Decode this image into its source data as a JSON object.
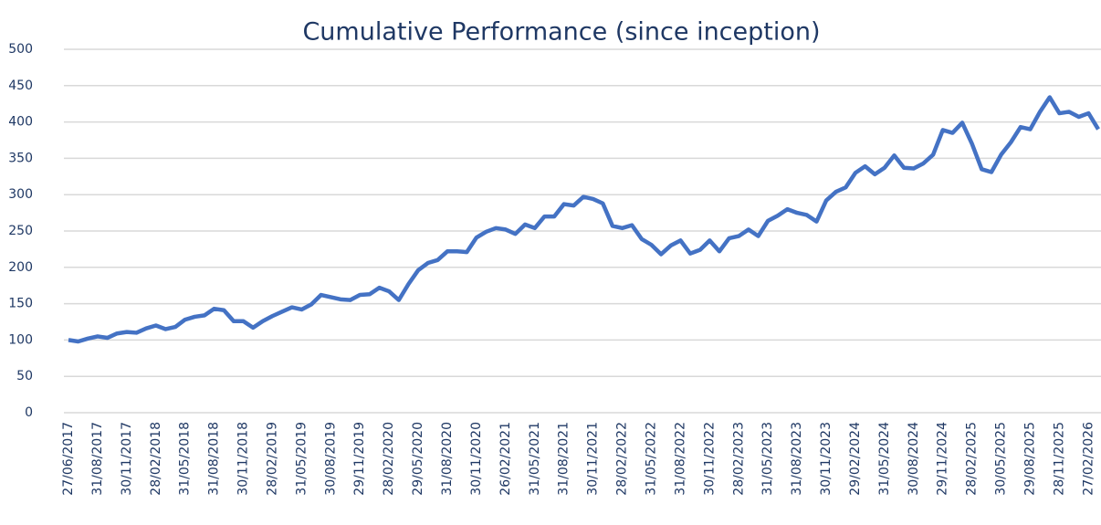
{
  "chart_data": {
    "type": "line",
    "title": "Cumulative Performance (since inception)",
    "categories": [
      "27/06/2017",
      null,
      null,
      "31/08/2017",
      null,
      null,
      "30/11/2017",
      null,
      null,
      "28/02/2018",
      null,
      null,
      "31/05/2018",
      null,
      null,
      "31/08/2018",
      null,
      null,
      "30/11/2018",
      null,
      null,
      "28/02/2019",
      null,
      null,
      "31/05/2019",
      null,
      null,
      "30/08/2019",
      null,
      null,
      "29/11/2019",
      null,
      null,
      "28/02/2020",
      null,
      null,
      "29/05/2020",
      null,
      null,
      "31/08/2020",
      null,
      null,
      "30/11/2020",
      null,
      null,
      "26/02/2021",
      null,
      null,
      "31/05/2021",
      null,
      null,
      "31/08/2021",
      null,
      null,
      "30/11/2021",
      null,
      null,
      "28/02/2022",
      null,
      null,
      "31/05/2022",
      null,
      null,
      "31/08/2022",
      null,
      null,
      "30/11/2022",
      null,
      null,
      "28/02/2023",
      null,
      null,
      "31/05/2023",
      null,
      null,
      "31/08/2023",
      null,
      null,
      "30/11/2023",
      null,
      null,
      "29/02/2024",
      null,
      null,
      "31/05/2024",
      null,
      null,
      "30/08/2024",
      null,
      null,
      "29/11/2024",
      null,
      null,
      "28/02/2025",
      null,
      null,
      "30/05/2025",
      null,
      null,
      "29/08/2025",
      null,
      null,
      "28/11/2025",
      null,
      null,
      "27/02/2026",
      null
    ],
    "series": [
      {
        "name": "Cumulative Performance",
        "color": "#4472c4",
        "values": [
          100,
          98,
          102,
          105,
          103,
          109,
          111,
          110,
          116,
          120,
          115,
          118,
          128,
          132,
          134,
          143,
          141,
          126,
          126,
          117,
          126,
          133,
          139,
          145,
          142,
          149,
          162,
          159,
          156,
          155,
          162,
          163,
          172,
          167,
          155,
          177,
          196,
          206,
          210,
          222,
          222,
          221,
          241,
          249,
          254,
          252,
          246,
          259,
          254,
          270,
          270,
          287,
          285,
          297,
          294,
          288,
          257,
          254,
          258,
          239,
          231,
          218,
          230,
          237,
          219,
          224,
          237,
          222,
          240,
          243,
          252,
          243,
          264,
          271,
          280,
          275,
          272,
          263,
          292,
          304,
          310,
          330,
          339,
          328,
          337,
          354,
          337,
          336,
          343,
          355,
          389,
          385,
          399,
          370,
          335,
          331,
          355,
          372,
          393,
          390,
          414,
          434,
          412,
          414,
          407,
          412,
          390
        ]
      }
    ],
    "ylim": [
      0,
      500
    ],
    "yticks": [
      0,
      50,
      100,
      150,
      200,
      250,
      300,
      350,
      400,
      450,
      500
    ],
    "grid": true,
    "legend": false
  }
}
